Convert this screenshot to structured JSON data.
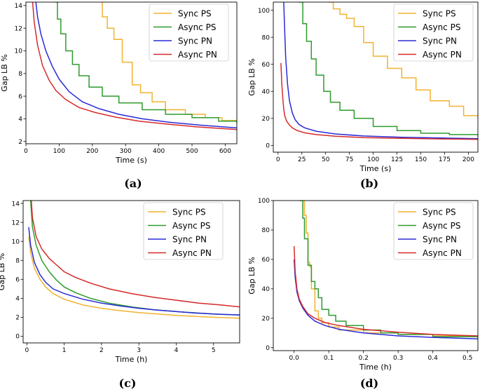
{
  "chart_data": [
    {
      "panel_label": "(a)",
      "type": "line",
      "xlabel": "Time (s)",
      "ylabel": "Gap LB %",
      "xlim": [
        0,
        635
      ],
      "ylim": [
        1.8,
        14.3
      ],
      "x_ticks": [
        0,
        100,
        200,
        300,
        400,
        500,
        600
      ],
      "y_ticks": [
        2,
        4,
        6,
        8,
        10,
        12,
        14
      ],
      "legend": "top-right",
      "series": [
        {
          "name": "Sync PS",
          "color": "#f2b22f",
          "step": true,
          "x": [
            228,
            230,
            245,
            265,
            290,
            320,
            345,
            380,
            420,
            480,
            540,
            590,
            635
          ],
          "y": [
            14.3,
            13.0,
            12.0,
            11.0,
            9.0,
            7.0,
            6.3,
            5.5,
            4.8,
            4.4,
            4.1,
            3.85,
            3.7
          ]
        },
        {
          "name": "Async PS",
          "color": "#2e9b2e",
          "step": true,
          "x": [
            88,
            95,
            105,
            120,
            140,
            160,
            190,
            230,
            280,
            350,
            420,
            500,
            580,
            635
          ],
          "y": [
            14.3,
            12.8,
            11.5,
            10.0,
            8.8,
            7.8,
            6.8,
            6.0,
            5.4,
            4.8,
            4.4,
            4.1,
            3.8,
            3.6
          ]
        },
        {
          "name": "Sync PN",
          "color": "#2b2bd8",
          "step": false,
          "x": [
            30,
            35,
            45,
            60,
            80,
            100,
            130,
            170,
            220,
            280,
            350,
            430,
            520,
            635
          ],
          "y": [
            14.3,
            13.0,
            11.5,
            10.0,
            8.6,
            7.5,
            6.4,
            5.5,
            4.9,
            4.4,
            4.0,
            3.7,
            3.45,
            3.2
          ]
        },
        {
          "name": "Async PN",
          "color": "#d62a2a",
          "step": false,
          "x": [
            20,
            25,
            35,
            50,
            70,
            90,
            120,
            160,
            210,
            270,
            340,
            420,
            510,
            635
          ],
          "y": [
            14.3,
            12.5,
            10.5,
            8.7,
            7.4,
            6.5,
            5.7,
            5.0,
            4.55,
            4.15,
            3.8,
            3.55,
            3.3,
            3.05
          ]
        }
      ]
    },
    {
      "panel_label": "(b)",
      "type": "line",
      "xlabel": "Time (s)",
      "ylabel": "Gap LB %",
      "xlim": [
        -5,
        210
      ],
      "ylim": [
        -5,
        106
      ],
      "x_ticks": [
        0,
        25,
        50,
        75,
        100,
        125,
        150,
        175,
        200
      ],
      "y_ticks": [
        0,
        20,
        40,
        60,
        80,
        100
      ],
      "legend": "top-right",
      "series": [
        {
          "name": "Sync PS",
          "color": "#f2b22f",
          "step": true,
          "x": [
            53,
            58,
            65,
            72,
            80,
            90,
            100,
            115,
            130,
            145,
            160,
            180,
            195,
            210
          ],
          "y": [
            106,
            101,
            97,
            94,
            88,
            76,
            66,
            57,
            50,
            41,
            33,
            29,
            22,
            20
          ]
        },
        {
          "name": "Async PS",
          "color": "#2e9b2e",
          "step": true,
          "x": [
            22,
            26,
            30,
            35,
            40,
            48,
            55,
            65,
            80,
            100,
            125,
            150,
            180,
            210
          ],
          "y": [
            106,
            90,
            77,
            64,
            52,
            40,
            32,
            26,
            20,
            14,
            11,
            9,
            8,
            6.5
          ]
        },
        {
          "name": "Sync PN",
          "color": "#2b2bd8",
          "step": false,
          "x": [
            6,
            7,
            8,
            10,
            12,
            15,
            18,
            22,
            28,
            40,
            60,
            90,
            130,
            170,
            210
          ],
          "y": [
            106,
            85,
            65,
            45,
            33,
            24,
            19,
            15.5,
            13,
            10.5,
            8.5,
            7,
            6,
            5.5,
            5
          ]
        },
        {
          "name": "Async PN",
          "color": "#d62a2a",
          "step": false,
          "x": [
            3,
            4,
            5,
            6,
            7,
            9,
            12,
            15,
            20,
            28,
            40,
            60,
            90,
            130,
            170,
            210
          ],
          "y": [
            61,
            45,
            35,
            27,
            22,
            18,
            15,
            13,
            11,
            9.3,
            8,
            6.8,
            5.8,
            5.2,
            4.8,
            4.5
          ]
        }
      ]
    },
    {
      "panel_label": "(c)",
      "type": "line",
      "xlabel": "Time (h)",
      "ylabel": "Gap LB %",
      "xlim": [
        -0.1,
        5.7
      ],
      "ylim": [
        -0.7,
        14.3
      ],
      "x_ticks": [
        0,
        1,
        2,
        3,
        4,
        5
      ],
      "y_ticks": [
        0,
        2,
        4,
        6,
        8,
        10,
        12,
        14
      ],
      "legend": "top-right",
      "series": [
        {
          "name": "Sync PS",
          "color": "#f2b22f",
          "step": false,
          "x": [
            0.05,
            0.1,
            0.2,
            0.35,
            0.5,
            0.7,
            1.0,
            1.5,
            2.0,
            2.5,
            3.0,
            3.5,
            4.0,
            4.5,
            5.0,
            5.7
          ],
          "y": [
            10.5,
            8.8,
            7.2,
            6.0,
            5.2,
            4.5,
            3.9,
            3.3,
            2.95,
            2.7,
            2.5,
            2.35,
            2.2,
            2.1,
            2.0,
            1.9
          ]
        },
        {
          "name": "Async PS",
          "color": "#2e9b2e",
          "step": false,
          "x": [
            0.1,
            0.15,
            0.25,
            0.4,
            0.6,
            0.8,
            1.0,
            1.3,
            1.7,
            2.2,
            2.8,
            3.4,
            4.0,
            4.6,
            5.2,
            5.7
          ],
          "y": [
            14.3,
            11.5,
            9.6,
            8.0,
            6.8,
            5.9,
            5.2,
            4.6,
            4.0,
            3.5,
            3.1,
            2.8,
            2.6,
            2.45,
            2.3,
            2.25
          ]
        },
        {
          "name": "Sync PN",
          "color": "#2b2bd8",
          "step": false,
          "x": [
            0.05,
            0.1,
            0.2,
            0.35,
            0.5,
            0.7,
            1.0,
            1.5,
            2.0,
            2.5,
            3.0,
            3.5,
            4.0,
            4.5,
            5.0,
            5.7
          ],
          "y": [
            11.5,
            9.6,
            7.8,
            6.5,
            5.7,
            5.0,
            4.5,
            3.9,
            3.5,
            3.2,
            2.95,
            2.75,
            2.6,
            2.45,
            2.35,
            2.25
          ]
        },
        {
          "name": "Async PN",
          "color": "#d62a2a",
          "step": false,
          "x": [
            0.12,
            0.15,
            0.25,
            0.4,
            0.6,
            0.8,
            1.0,
            1.3,
            1.7,
            2.2,
            2.8,
            3.4,
            4.0,
            4.6,
            5.2,
            5.7
          ],
          "y": [
            14.3,
            12.5,
            10.5,
            9.2,
            8.2,
            7.5,
            6.8,
            6.2,
            5.6,
            5.0,
            4.5,
            4.1,
            3.8,
            3.5,
            3.3,
            3.1
          ]
        }
      ]
    },
    {
      "panel_label": "(d)",
      "type": "line",
      "xlabel": "Time (h)",
      "ylabel": "Gap LB %",
      "xlim": [
        -0.06,
        0.53
      ],
      "ylim": [
        -2,
        100
      ],
      "x_ticks": [
        0.0,
        0.1,
        0.2,
        0.3,
        0.4,
        0.5
      ],
      "x_tick_labels": [
        "0.0",
        "0.1",
        "0.2",
        "0.3",
        "0.4",
        "0.5"
      ],
      "y_ticks": [
        0,
        20,
        40,
        60,
        80,
        100
      ],
      "legend": "top-right",
      "series": [
        {
          "name": "Sync PS",
          "color": "#f2b22f",
          "step": true,
          "x": [
            0.025,
            0.03,
            0.035,
            0.04,
            0.045,
            0.05,
            0.06,
            0.07,
            0.08,
            0.1,
            0.13,
            0.2,
            0.3,
            0.4,
            0.53
          ],
          "y": [
            100,
            90,
            78,
            58,
            55,
            40,
            25,
            20,
            17,
            14,
            12,
            10,
            9,
            8,
            7
          ]
        },
        {
          "name": "Async PS",
          "color": "#2e9b2e",
          "step": true,
          "x": [
            0.015,
            0.025,
            0.03,
            0.04,
            0.05,
            0.06,
            0.07,
            0.08,
            0.1,
            0.12,
            0.15,
            0.2,
            0.25,
            0.3,
            0.4,
            0.53
          ],
          "y": [
            100,
            88,
            74,
            56,
            45,
            40,
            34,
            26,
            22,
            18,
            15,
            12,
            10,
            9,
            7.5,
            6.5
          ]
        },
        {
          "name": "Sync PN",
          "color": "#2b2bd8",
          "step": false,
          "x": [
            0.0,
            0.003,
            0.008,
            0.015,
            0.025,
            0.04,
            0.06,
            0.09,
            0.13,
            0.2,
            0.3,
            0.4,
            0.53
          ],
          "y": [
            60,
            48,
            38,
            32,
            27,
            22,
            18,
            15,
            12.5,
            10,
            8,
            7,
            6
          ]
        },
        {
          "name": "Async PN",
          "color": "#d62a2a",
          "step": false,
          "x": [
            0.0,
            0.003,
            0.008,
            0.015,
            0.025,
            0.04,
            0.06,
            0.09,
            0.13,
            0.2,
            0.3,
            0.4,
            0.53
          ],
          "y": [
            69,
            52,
            40,
            33,
            28,
            23,
            20,
            17,
            15,
            12.5,
            10.5,
            9,
            8
          ]
        }
      ]
    }
  ]
}
